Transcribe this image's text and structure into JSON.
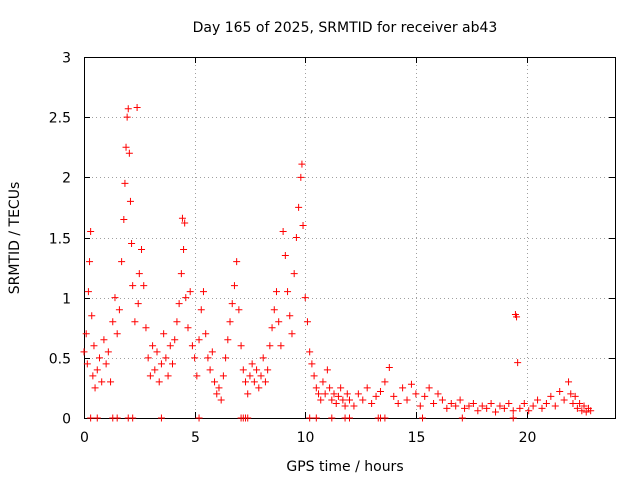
{
  "chart_data": {
    "type": "scatter",
    "title": "Day 165 of 2025, SRMTID for receiver ab43",
    "xlabel": "GPS time / hours",
    "ylabel": "SRMTID / TECUs",
    "xlim": [
      0,
      24
    ],
    "ylim": [
      0,
      3
    ],
    "xticks": [
      0,
      5,
      10,
      15,
      20
    ],
    "xtick_labels": [
      "0",
      "5",
      "10",
      "15",
      "20"
    ],
    "yticks": [
      0,
      0.5,
      1,
      1.5,
      2,
      2.5,
      3
    ],
    "ytick_labels": [
      "0",
      "0.5",
      "1",
      "1.5",
      "2",
      "2.5",
      "3"
    ],
    "grid": true,
    "marker": "plus",
    "series": [
      {
        "name": "SRMTID",
        "color": "#ff0000",
        "points": [
          [
            0.0,
            0.55
          ],
          [
            0.1,
            0.7
          ],
          [
            0.15,
            0.45
          ],
          [
            0.2,
            1.05
          ],
          [
            0.25,
            1.3
          ],
          [
            0.3,
            1.55
          ],
          [
            0.35,
            0.85
          ],
          [
            0.4,
            0.35
          ],
          [
            0.45,
            0.6
          ],
          [
            0.5,
            0.25
          ],
          [
            0.6,
            0.4
          ],
          [
            0.7,
            0.5
          ],
          [
            0.8,
            0.3
          ],
          [
            0.9,
            0.65
          ],
          [
            1.0,
            0.45
          ],
          [
            1.1,
            0.55
          ],
          [
            1.2,
            0.3
          ],
          [
            1.3,
            0.8
          ],
          [
            1.4,
            1.0
          ],
          [
            1.5,
            0.7
          ],
          [
            1.6,
            0.9
          ],
          [
            1.7,
            1.3
          ],
          [
            1.8,
            1.65
          ],
          [
            1.85,
            1.95
          ],
          [
            1.9,
            2.25
          ],
          [
            1.95,
            2.5
          ],
          [
            2.0,
            2.57
          ],
          [
            2.05,
            2.2
          ],
          [
            2.1,
            1.8
          ],
          [
            2.15,
            1.45
          ],
          [
            2.2,
            1.1
          ],
          [
            2.3,
            0.8
          ],
          [
            2.4,
            2.58
          ],
          [
            2.45,
            0.95
          ],
          [
            2.5,
            1.2
          ],
          [
            2.6,
            1.4
          ],
          [
            2.7,
            1.1
          ],
          [
            2.8,
            0.75
          ],
          [
            2.9,
            0.5
          ],
          [
            3.0,
            0.35
          ],
          [
            3.1,
            0.6
          ],
          [
            3.2,
            0.4
          ],
          [
            3.3,
            0.55
          ],
          [
            3.4,
            0.3
          ],
          [
            3.5,
            0.45
          ],
          [
            3.6,
            0.7
          ],
          [
            3.7,
            0.5
          ],
          [
            3.8,
            0.35
          ],
          [
            3.9,
            0.6
          ],
          [
            4.0,
            0.45
          ],
          [
            4.1,
            0.65
          ],
          [
            4.2,
            0.8
          ],
          [
            4.3,
            0.95
          ],
          [
            4.4,
            1.2
          ],
          [
            4.45,
            1.66
          ],
          [
            4.5,
            1.4
          ],
          [
            4.55,
            1.62
          ],
          [
            4.6,
            1.0
          ],
          [
            4.7,
            0.75
          ],
          [
            4.8,
            1.05
          ],
          [
            4.9,
            0.6
          ],
          [
            5.0,
            0.5
          ],
          [
            5.1,
            0.35
          ],
          [
            5.2,
            0.65
          ],
          [
            5.3,
            0.9
          ],
          [
            5.4,
            1.05
          ],
          [
            5.5,
            0.7
          ],
          [
            5.6,
            0.5
          ],
          [
            5.7,
            0.4
          ],
          [
            5.8,
            0.55
          ],
          [
            5.9,
            0.3
          ],
          [
            6.0,
            0.2
          ],
          [
            6.1,
            0.25
          ],
          [
            6.2,
            0.15
          ],
          [
            6.3,
            0.35
          ],
          [
            6.4,
            0.5
          ],
          [
            6.5,
            0.65
          ],
          [
            6.6,
            0.8
          ],
          [
            6.7,
            0.95
          ],
          [
            6.8,
            1.1
          ],
          [
            6.9,
            1.3
          ],
          [
            7.0,
            0.9
          ],
          [
            7.1,
            0.6
          ],
          [
            7.2,
            0.4
          ],
          [
            7.3,
            0.3
          ],
          [
            7.4,
            0.2
          ],
          [
            7.5,
            0.35
          ],
          [
            7.6,
            0.45
          ],
          [
            7.7,
            0.3
          ],
          [
            7.8,
            0.4
          ],
          [
            7.9,
            0.25
          ],
          [
            8.0,
            0.35
          ],
          [
            8.1,
            0.5
          ],
          [
            8.2,
            0.3
          ],
          [
            8.3,
            0.4
          ],
          [
            8.4,
            0.6
          ],
          [
            8.5,
            0.75
          ],
          [
            8.6,
            0.9
          ],
          [
            8.7,
            1.05
          ],
          [
            8.8,
            0.8
          ],
          [
            8.9,
            0.6
          ],
          [
            9.0,
            1.55
          ],
          [
            9.1,
            1.35
          ],
          [
            9.2,
            1.05
          ],
          [
            9.3,
            0.85
          ],
          [
            9.4,
            0.7
          ],
          [
            9.5,
            1.2
          ],
          [
            9.6,
            1.5
          ],
          [
            9.7,
            1.75
          ],
          [
            9.8,
            2.0
          ],
          [
            9.85,
            2.11
          ],
          [
            9.9,
            1.6
          ],
          [
            10.0,
            1.0
          ],
          [
            10.1,
            0.8
          ],
          [
            10.2,
            0.55
          ],
          [
            10.3,
            0.45
          ],
          [
            10.4,
            0.35
          ],
          [
            10.5,
            0.25
          ],
          [
            10.6,
            0.2
          ],
          [
            10.7,
            0.15
          ],
          [
            10.8,
            0.3
          ],
          [
            10.9,
            0.2
          ],
          [
            11.0,
            0.4
          ],
          [
            11.1,
            0.25
          ],
          [
            11.2,
            0.15
          ],
          [
            11.3,
            0.2
          ],
          [
            11.4,
            0.12
          ],
          [
            11.5,
            0.18
          ],
          [
            11.6,
            0.25
          ],
          [
            11.7,
            0.15
          ],
          [
            11.8,
            0.1
          ],
          [
            11.9,
            0.2
          ],
          [
            12.0,
            0.15
          ],
          [
            12.2,
            0.1
          ],
          [
            12.4,
            0.2
          ],
          [
            12.6,
            0.15
          ],
          [
            12.8,
            0.25
          ],
          [
            13.0,
            0.12
          ],
          [
            13.2,
            0.18
          ],
          [
            13.4,
            0.22
          ],
          [
            13.6,
            0.3
          ],
          [
            13.8,
            0.42
          ],
          [
            14.0,
            0.18
          ],
          [
            14.2,
            0.12
          ],
          [
            14.4,
            0.25
          ],
          [
            14.6,
            0.15
          ],
          [
            14.8,
            0.28
          ],
          [
            15.0,
            0.2
          ],
          [
            15.2,
            0.1
          ],
          [
            15.4,
            0.18
          ],
          [
            15.6,
            0.25
          ],
          [
            15.8,
            0.12
          ],
          [
            16.0,
            0.2
          ],
          [
            16.2,
            0.15
          ],
          [
            16.4,
            0.08
          ],
          [
            16.6,
            0.12
          ],
          [
            16.8,
            0.1
          ],
          [
            17.0,
            0.15
          ],
          [
            17.2,
            0.08
          ],
          [
            17.4,
            0.1
          ],
          [
            17.6,
            0.12
          ],
          [
            17.8,
            0.06
          ],
          [
            18.0,
            0.1
          ],
          [
            18.2,
            0.08
          ],
          [
            18.4,
            0.12
          ],
          [
            18.6,
            0.05
          ],
          [
            18.8,
            0.1
          ],
          [
            19.0,
            0.08
          ],
          [
            19.2,
            0.12
          ],
          [
            19.4,
            0.06
          ],
          [
            19.5,
            0.86
          ],
          [
            19.55,
            0.84
          ],
          [
            19.6,
            0.46
          ],
          [
            19.7,
            0.08
          ],
          [
            19.9,
            0.12
          ],
          [
            20.1,
            0.06
          ],
          [
            20.3,
            0.1
          ],
          [
            20.5,
            0.15
          ],
          [
            20.7,
            0.08
          ],
          [
            20.9,
            0.12
          ],
          [
            21.1,
            0.18
          ],
          [
            21.3,
            0.1
          ],
          [
            21.5,
            0.22
          ],
          [
            21.7,
            0.15
          ],
          [
            21.9,
            0.3
          ],
          [
            22.0,
            0.2
          ],
          [
            22.1,
            0.12
          ],
          [
            22.2,
            0.18
          ],
          [
            22.3,
            0.08
          ],
          [
            22.4,
            0.12
          ],
          [
            22.5,
            0.06
          ],
          [
            22.6,
            0.1
          ],
          [
            22.7,
            0.05
          ],
          [
            22.8,
            0.08
          ],
          [
            22.9,
            0.06
          ],
          [
            0.3,
            0.0
          ],
          [
            0.6,
            0.0
          ],
          [
            1.3,
            0.0
          ],
          [
            1.5,
            0.0
          ],
          [
            2.0,
            0.0
          ],
          [
            2.2,
            0.0
          ],
          [
            3.5,
            0.0
          ],
          [
            5.2,
            0.0
          ],
          [
            7.1,
            0.0
          ],
          [
            7.2,
            0.0
          ],
          [
            7.3,
            0.0
          ],
          [
            7.4,
            0.0
          ],
          [
            10.2,
            0.0
          ],
          [
            10.5,
            0.0
          ],
          [
            11.2,
            0.0
          ],
          [
            11.8,
            0.0
          ],
          [
            12.0,
            0.0
          ],
          [
            13.3,
            0.0
          ],
          [
            13.4,
            0.0
          ],
          [
            13.6,
            0.0
          ],
          [
            15.3,
            0.0
          ],
          [
            17.1,
            0.0
          ],
          [
            19.4,
            0.0
          ]
        ]
      }
    ]
  }
}
